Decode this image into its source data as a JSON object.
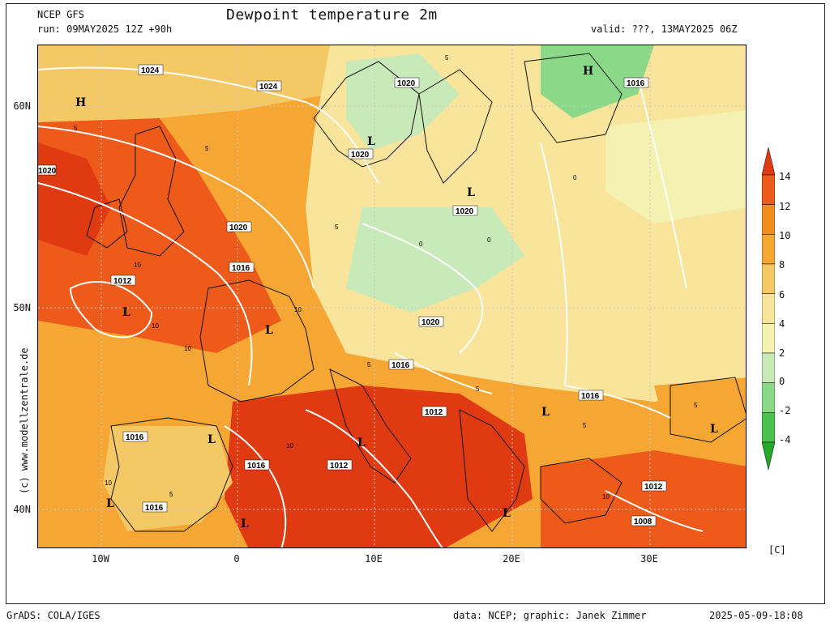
{
  "header": {
    "model": "NCEP GFS",
    "run": "run: 09MAY2025 12Z +90h",
    "title": "Dewpoint temperature 2m",
    "valid": "valid: ???, 13MAY2025 06Z"
  },
  "axes": {
    "lat_labels": [
      "60N",
      "50N",
      "40N"
    ],
    "lon_labels": [
      "10W",
      "0",
      "10E",
      "20E",
      "30E"
    ]
  },
  "colorbar": {
    "labels": [
      "14",
      "12",
      "10",
      "8",
      "6",
      "4",
      "2",
      "0",
      "-2",
      "-4"
    ],
    "colors": [
      "#e03a12",
      "#ee5a1a",
      "#f38c1e",
      "#f6a733",
      "#f5c866",
      "#f8e49a",
      "#f4f2b0",
      "#c8eab8",
      "#8cd889",
      "#4cc24e",
      "#22a82a"
    ],
    "unit": "[C]"
  },
  "map": {
    "pressure_labels": [
      "1024",
      "1024",
      "1020",
      "1020",
      "1020",
      "1020",
      "1016",
      "1016",
      "1016",
      "1012",
      "1016",
      "1016",
      "1012",
      "1012",
      "1020",
      "1016",
      "1016",
      "1016",
      "1012",
      "1008",
      "1020"
    ],
    "centers": [
      "H",
      "H",
      "L",
      "L",
      "L",
      "L",
      "L",
      "L",
      "L",
      "L",
      "L",
      "L",
      "L",
      "L",
      "L"
    ],
    "dewpoint_labels": [
      "5",
      "5",
      "5",
      "5",
      "10",
      "10",
      "10",
      "10",
      "5",
      "0",
      "0",
      "0",
      "5",
      "5",
      "5",
      "10",
      "10",
      "10",
      "5"
    ]
  },
  "footer": {
    "software": "GrADS: COLA/IGES",
    "credit": "data: NCEP; graphic: Janek Zimmer",
    "timestamp": "2025-05-09-18:08",
    "watermark": "(c) www.modellzentrale.de"
  }
}
